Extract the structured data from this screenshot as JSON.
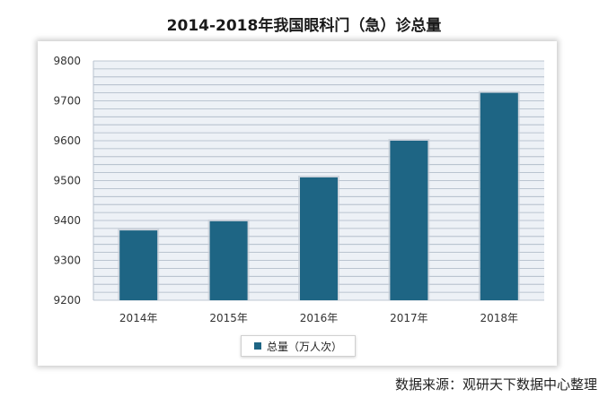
{
  "title": "2014-2018年我国眼科门（急）诊总量",
  "source": "数据来源：观研天下数据中心整理",
  "colors": {
    "bar": "#1e6584",
    "grid": "#aab6c4",
    "plot_bg": "#edf1f6"
  },
  "chart_data": {
    "type": "bar",
    "title": "2014-2018年我国眼科门（急）诊总量",
    "xlabel": "",
    "ylabel": "",
    "categories": [
      "2014年",
      "2015年",
      "2016年",
      "2017年",
      "2018年"
    ],
    "series": [
      {
        "name": "总量（万人次）",
        "values": [
          9375,
          9398,
          9508,
          9600,
          9720
        ]
      }
    ],
    "ylim": [
      9200,
      9800
    ],
    "yticks": [
      9200,
      9300,
      9400,
      9500,
      9600,
      9700,
      9800
    ],
    "grid": true,
    "legend_position": "bottom"
  }
}
